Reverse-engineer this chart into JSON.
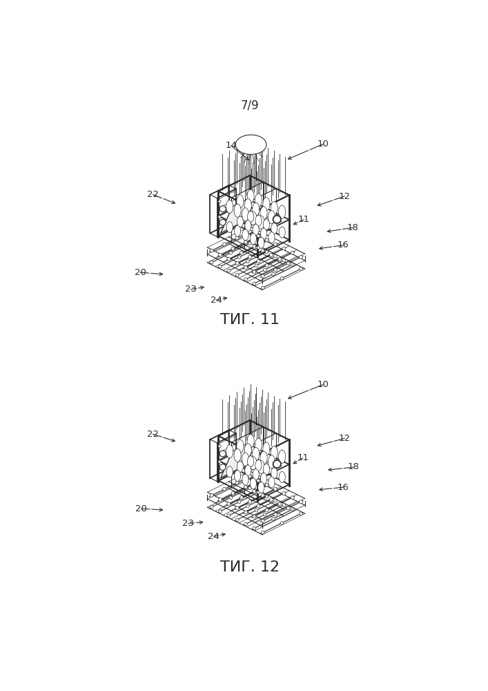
{
  "page_label": "7/9",
  "fig1_label": "ΤИГ. 11",
  "fig2_label": "ΤИГ. 12",
  "background_color": "#ffffff",
  "line_color": "#2a2a2a",
  "fig_width": 7.07,
  "fig_height": 10.0,
  "dpi": 100
}
